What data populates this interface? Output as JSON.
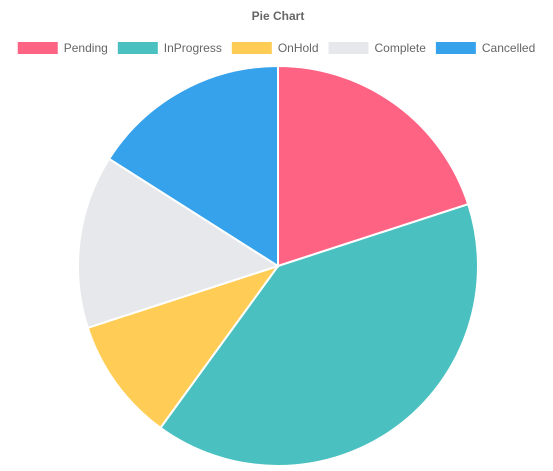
{
  "chart_data": {
    "type": "pie",
    "title": "Pie Chart",
    "legend_position": "top",
    "categories": [
      "Pending",
      "InProgress",
      "OnHold",
      "Complete",
      "Cancelled"
    ],
    "values": [
      20,
      40,
      10,
      14,
      16
    ],
    "colors": [
      "#ff6384",
      "#4bc0c0",
      "#ffcd56",
      "#e7e8ec",
      "#36a2eb"
    ]
  }
}
